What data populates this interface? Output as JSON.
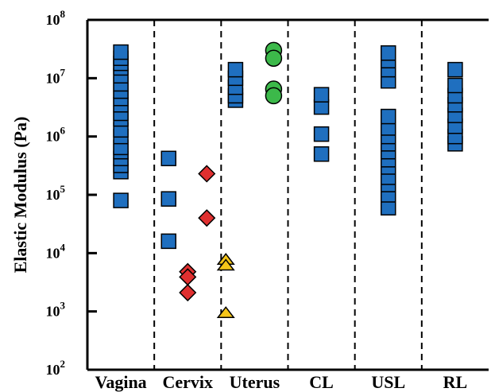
{
  "chart_data": {
    "type": "scatter",
    "ylabel": "Elastic Modulus (Pa)",
    "yscale": "log",
    "ylim": [
      100,
      100000000
    ],
    "y_ticks": [
      {
        "value": 100,
        "base": "10",
        "exp": "2"
      },
      {
        "value": 1000,
        "base": "10",
        "exp": "3"
      },
      {
        "value": 10000,
        "base": "10",
        "exp": "4"
      },
      {
        "value": 100000,
        "base": "10",
        "exp": "5"
      },
      {
        "value": 1000000,
        "base": "10",
        "exp": "6"
      },
      {
        "value": 10000000,
        "base": "10",
        "exp": "7"
      },
      {
        "value": 100000000,
        "base": "10",
        "exp": "8"
      }
    ],
    "categories": [
      "Vagina",
      "Cervix",
      "Uterus",
      "CL",
      "USL",
      "RL"
    ],
    "grid": false,
    "category_separators": "dashed",
    "series": [
      {
        "marker": "square",
        "color": "#1f6fbf",
        "points": [
          {
            "x": "Vagina",
            "y": 80000
          },
          {
            "x": "Vagina",
            "y": 250000
          },
          {
            "x": "Vagina",
            "y": 320000
          },
          {
            "x": "Vagina",
            "y": 420000
          },
          {
            "x": "Vagina",
            "y": 550000
          },
          {
            "x": "Vagina",
            "y": 650000
          },
          {
            "x": "Vagina",
            "y": 1000000
          },
          {
            "x": "Vagina",
            "y": 1300000
          },
          {
            "x": "Vagina",
            "y": 2000000
          },
          {
            "x": "Vagina",
            "y": 2500000
          },
          {
            "x": "Vagina",
            "y": 3500000
          },
          {
            "x": "Vagina",
            "y": 4500000
          },
          {
            "x": "Vagina",
            "y": 6000000
          },
          {
            "x": "Vagina",
            "y": 8000000
          },
          {
            "x": "Vagina",
            "y": 11000000
          },
          {
            "x": "Vagina",
            "y": 15000000
          },
          {
            "x": "Vagina",
            "y": 18000000
          },
          {
            "x": "Vagina",
            "y": 22000000
          },
          {
            "x": "Vagina",
            "y": 28000000
          },
          {
            "x": "Cervix",
            "y": 420000,
            "offset": -1
          },
          {
            "x": "Cervix",
            "y": 85000,
            "offset": -1
          },
          {
            "x": "Cervix",
            "y": 16000,
            "offset": -1
          },
          {
            "x": "Uterus",
            "y": 4200000,
            "offset": -1
          },
          {
            "x": "Uterus",
            "y": 5000000,
            "offset": -1
          },
          {
            "x": "Uterus",
            "y": 7000000,
            "offset": -1
          },
          {
            "x": "Uterus",
            "y": 10000000,
            "offset": -1
          },
          {
            "x": "Uterus",
            "y": 14000000,
            "offset": -1
          },
          {
            "x": "CL",
            "y": 500000
          },
          {
            "x": "CL",
            "y": 1100000
          },
          {
            "x": "CL",
            "y": 3200000
          },
          {
            "x": "CL",
            "y": 5200000
          },
          {
            "x": "USL",
            "y": 60000
          },
          {
            "x": "USL",
            "y": 100000
          },
          {
            "x": "USL",
            "y": 150000
          },
          {
            "x": "USL",
            "y": 200000
          },
          {
            "x": "USL",
            "y": 300000
          },
          {
            "x": "USL",
            "y": 400000
          },
          {
            "x": "USL",
            "y": 550000
          },
          {
            "x": "USL",
            "y": 750000
          },
          {
            "x": "USL",
            "y": 1000000
          },
          {
            "x": "USL",
            "y": 1400000
          },
          {
            "x": "USL",
            "y": 2200000
          },
          {
            "x": "USL",
            "y": 9000000
          },
          {
            "x": "USL",
            "y": 14000000
          },
          {
            "x": "USL",
            "y": 20000000
          },
          {
            "x": "USL",
            "y": 27000000
          },
          {
            "x": "RL",
            "y": 750000
          },
          {
            "x": "RL",
            "y": 1000000
          },
          {
            "x": "RL",
            "y": 1500000
          },
          {
            "x": "RL",
            "y": 2300000
          },
          {
            "x": "RL",
            "y": 3500000
          },
          {
            "x": "RL",
            "y": 5000000
          },
          {
            "x": "RL",
            "y": 7500000
          },
          {
            "x": "RL",
            "y": 14000000
          }
        ]
      },
      {
        "marker": "diamond",
        "color": "#e03030",
        "points": [
          {
            "x": "Cervix",
            "y": 230000,
            "offset": 1
          },
          {
            "x": "Cervix",
            "y": 40000,
            "offset": 1
          },
          {
            "x": "Cervix",
            "y": 4800.0,
            "offset": 0
          },
          {
            "x": "Cervix",
            "y": 3900,
            "offset": 0
          },
          {
            "x": "Cervix",
            "y": 2100,
            "offset": 0
          }
        ]
      },
      {
        "marker": "triangle",
        "color": "#f5c518",
        "points": [
          {
            "x": "Cervix",
            "y": 7800,
            "offset": 2
          },
          {
            "x": "Cervix",
            "y": 6200,
            "offset": 2
          },
          {
            "x": "Cervix",
            "y": 950,
            "offset": 2
          }
        ]
      },
      {
        "marker": "circle",
        "color": "#3cb94a",
        "points": [
          {
            "x": "Uterus",
            "y": 30000000,
            "offset": 1
          },
          {
            "x": "Uterus",
            "y": 22000000,
            "offset": 1
          },
          {
            "x": "Uterus",
            "y": 6500000,
            "offset": 1
          },
          {
            "x": "Uterus",
            "y": 5000000,
            "offset": 1
          }
        ]
      }
    ]
  }
}
